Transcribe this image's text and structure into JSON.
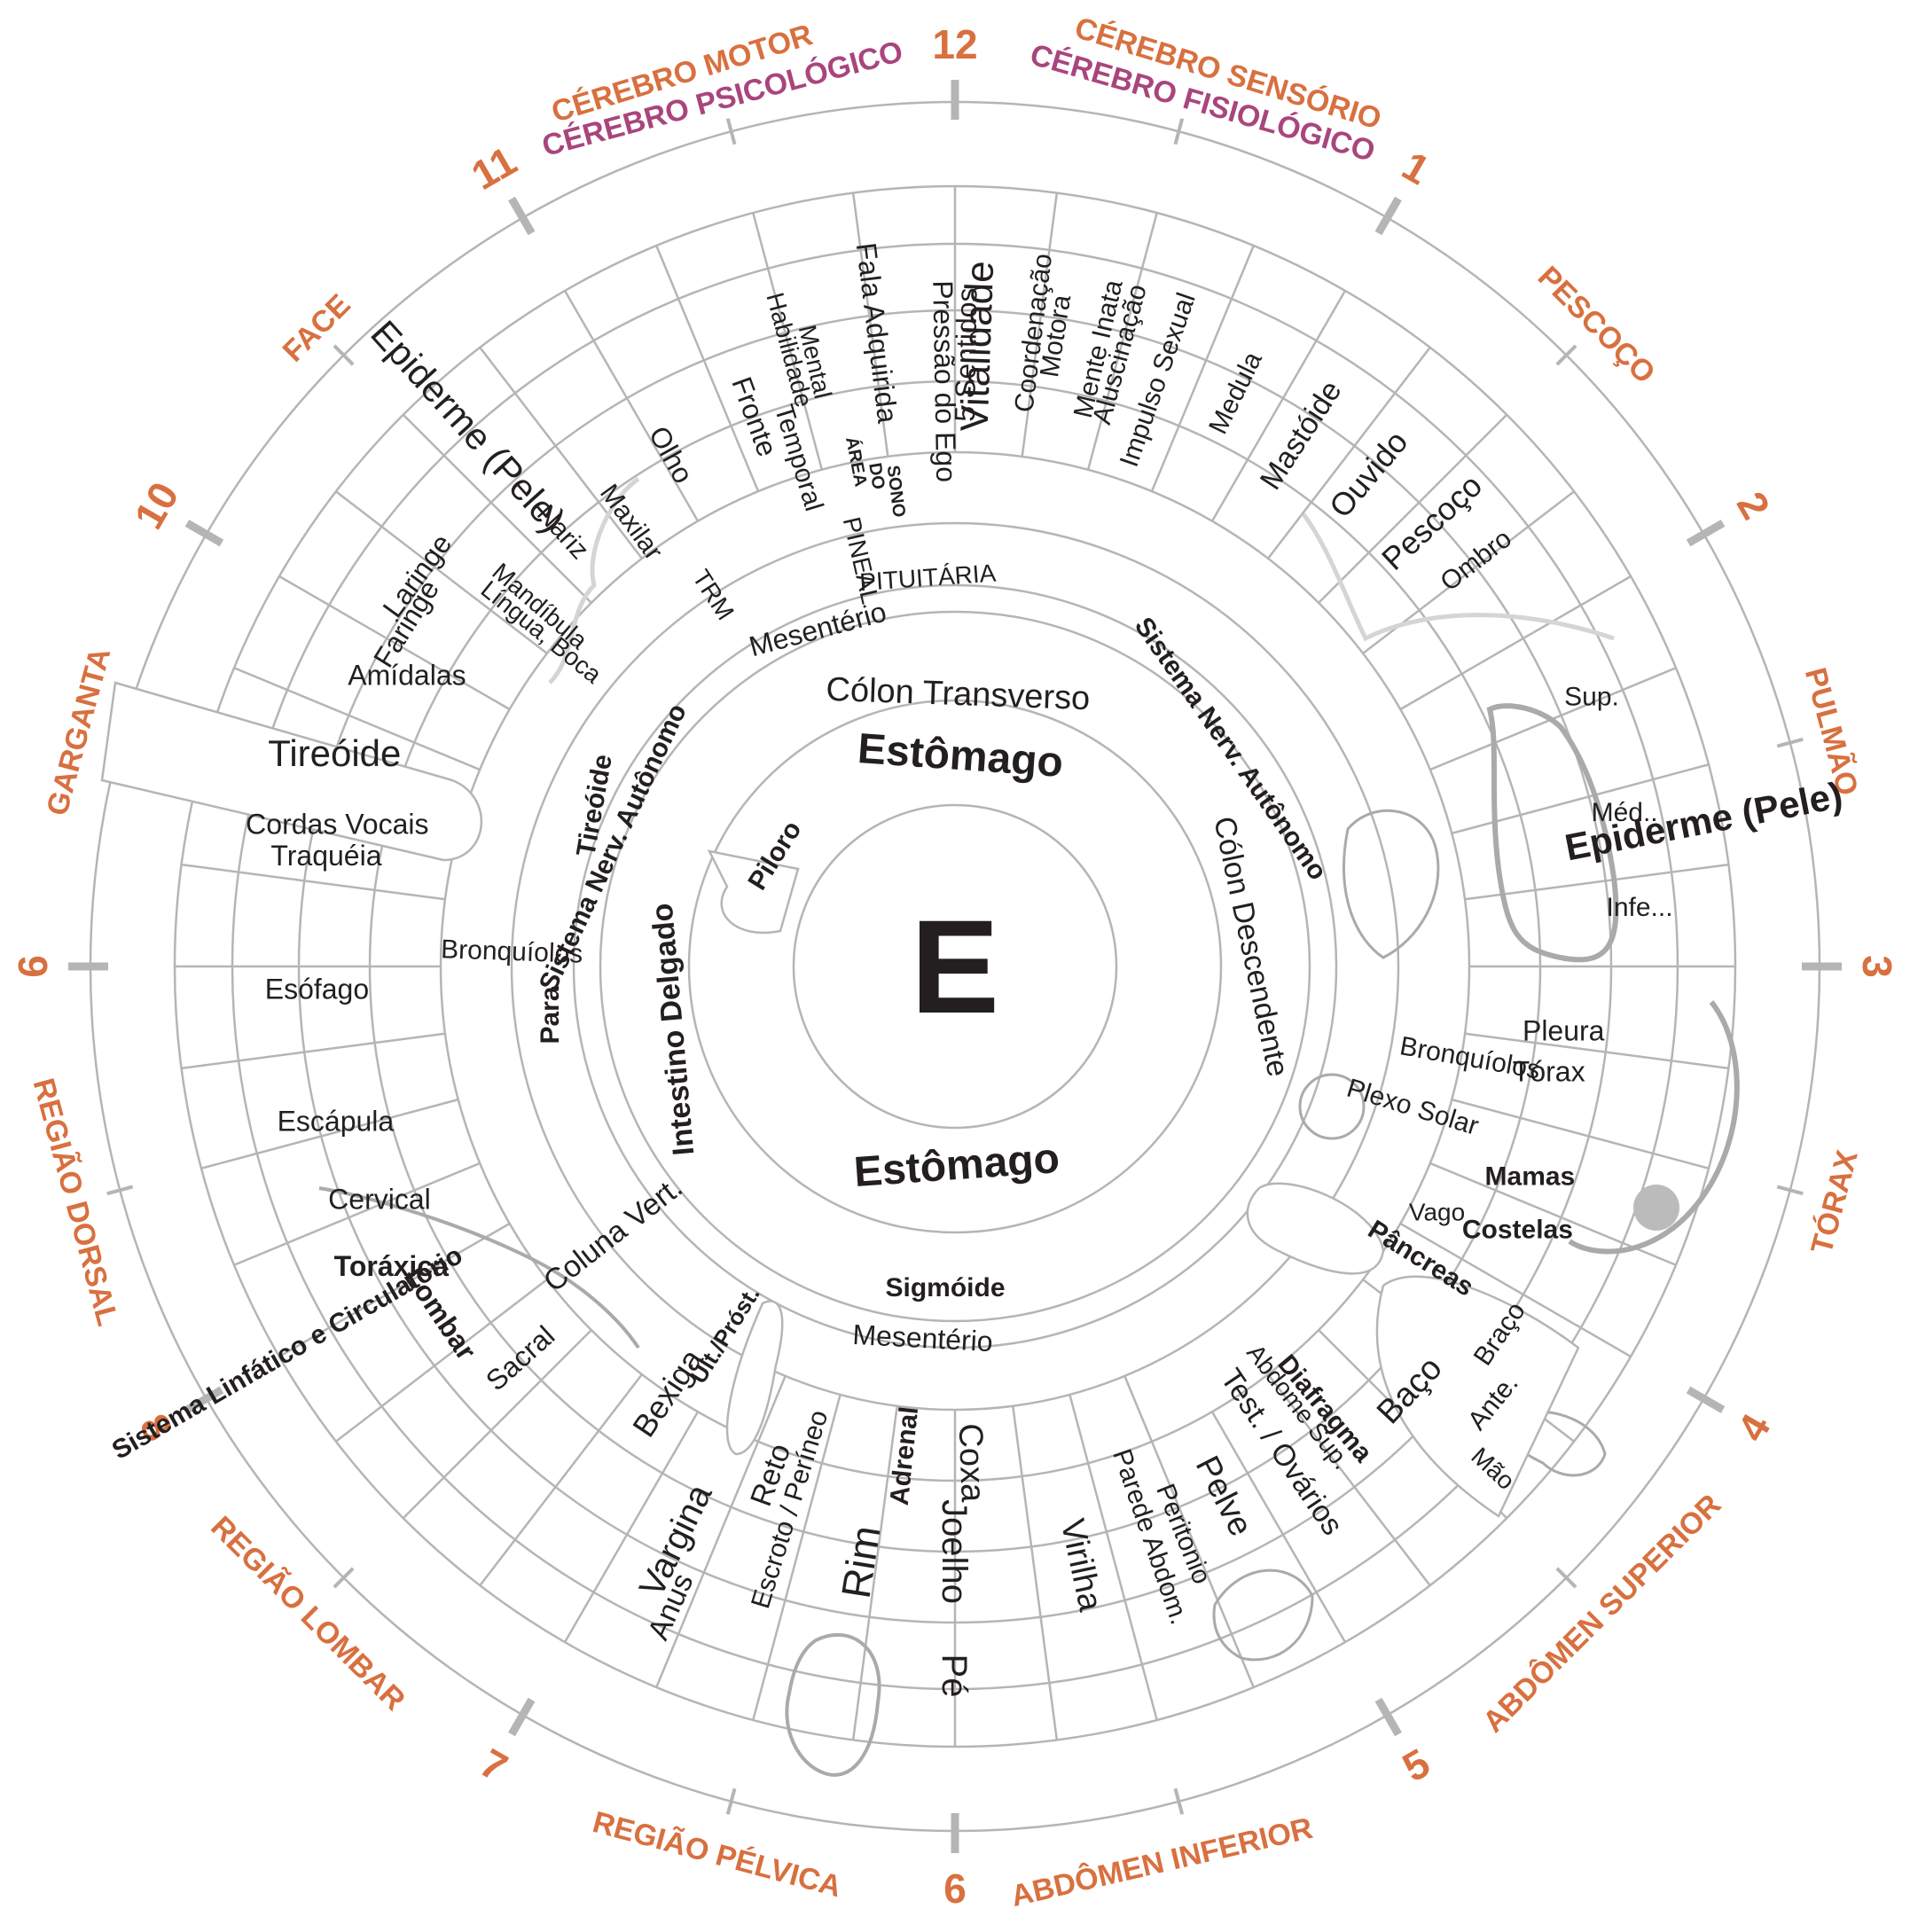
{
  "colors": {
    "zone_label": "#d8703f",
    "brain_secondary": "#a9457c",
    "hour_label": "#d8703f",
    "line": "#b5b5b5",
    "text": "#231f20"
  },
  "center_letter": "E",
  "hours": [
    "12",
    "1",
    "2",
    "3",
    "4",
    "5",
    "6",
    "7",
    "8",
    "6",
    "10",
    "11"
  ],
  "zones": [
    "CÉREBRO MOTOR",
    "CÉREBRO PSICOLÓGICO",
    "CÉREBRO SENSÓRIO",
    "CÉREBRO FISIOLÓGICO",
    "PESCOÇO",
    "PULMÃO",
    "TÓRAX",
    "ABDÔMEN SUPERIOR",
    "ABDÔMEN INFERIOR",
    "REGIÃO PÉLVICA",
    "REGIÃO LOMBAR",
    "REGIÃO DORSAL",
    "GARGANTA",
    "FACE"
  ],
  "inner": {
    "estomago_top": "Estômago",
    "estomago_bottom": "Estômago",
    "piloro": "Piloro",
    "colon_transverso": "Cólon Transverso",
    "colon_descendente": "Cólon Descendente",
    "intestino_delgado": "Intestino Delgado",
    "sigmoide": "Sigmóide",
    "sistema_nerv_autonomo_right": "Sistema Nerv. Autônomo",
    "sistema_nerv_autonomo_left": "Sistema Nerv. Autônomo",
    "para": "Para",
    "tireoide_small": "Tireóide",
    "mesenterio_top": "Mesentério",
    "mesenterio_bottom": "Mesentério"
  },
  "organs": [
    "Vitalidade",
    "Coordenação",
    "Motora",
    "Mente Inata",
    "Aluscinação",
    "Impulso Sexual",
    "Medula",
    "Mastóide",
    "Ouvido",
    "Pescoço",
    "Ombro",
    "Epiderme (Pele)",
    "Sup.",
    "Méd..",
    "Infe...",
    "Pleura",
    "Tórax",
    "Bronquíolos",
    "Plexo Solar",
    "Mamas",
    "Costelas",
    "Vago",
    "Pâncreas",
    "Braço",
    "Ante.",
    "Mão",
    "Baço",
    "Diafragma",
    "Abdome Sup.",
    "Test. / Ovários",
    "Pelve",
    "Peritonio",
    "Parede Abdom.",
    "Virilha",
    "Coxa",
    "Joelho",
    "Pé",
    "Adrenal",
    "Rim",
    "Escroto / Períneo",
    "Reto",
    "Anus",
    "Vargina",
    "Bexiga",
    "Últ./Próst.",
    "Sacral",
    "Lombar",
    "Toráxica",
    "Cervical",
    "Coluna Vert.",
    "Sistema Linfático e Circulatório",
    "Escápula",
    "Esófago",
    "Cordas Vocais",
    "Traquéia",
    "Bronquíolos",
    "Tireóide",
    "Amídalas",
    "Faringe",
    "Laringe",
    "Língua, Boca",
    "Mandíbula",
    "Nariz",
    "Maxilar",
    "TRM",
    "Olho",
    "Epiderme (Pele)",
    "Fronte",
    "Habilidade",
    "Mental",
    "Temporal",
    "ÁREA",
    "DO",
    "SONO",
    "Fala Adquirida",
    "PINEAL",
    "PITUITÁRIA",
    "Pressão do Ego",
    "5 Sentidos"
  ]
}
